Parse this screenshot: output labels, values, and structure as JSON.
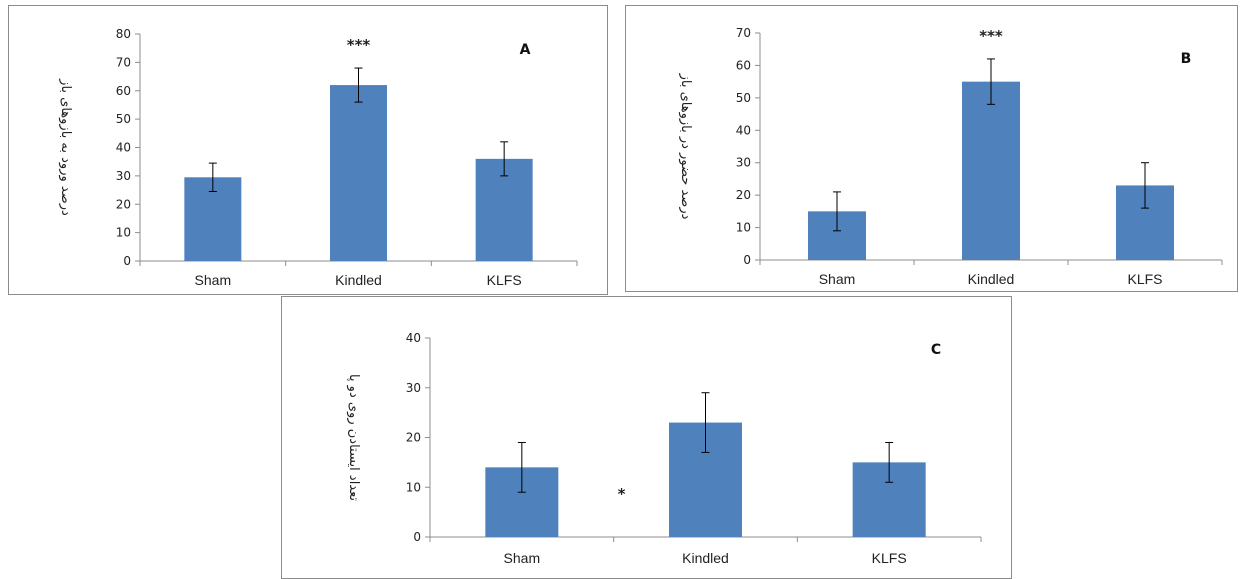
{
  "colors": {
    "bar": "#4f81bd",
    "axis": "#8c8c8c",
    "error": "#000000"
  },
  "chart_data": [
    {
      "id": "A",
      "type": "bar",
      "panel_label": "A",
      "categories": [
        "Sham",
        "Kindled",
        "KLFS"
      ],
      "values": [
        29.5,
        62,
        36
      ],
      "errors": [
        5,
        6,
        6
      ],
      "annotations": [
        "",
        "***",
        ""
      ],
      "ylabel": "درصد ورود به بازوهای باز",
      "ylim": [
        0,
        80
      ],
      "yticks": [
        0,
        10,
        20,
        30,
        40,
        50,
        60,
        70,
        80
      ],
      "grid": false,
      "legend": "none"
    },
    {
      "id": "B",
      "type": "bar",
      "panel_label": "B",
      "categories": [
        "Sham",
        "Kindled",
        "KLFS"
      ],
      "values": [
        15,
        55,
        23
      ],
      "errors": [
        6,
        7,
        7
      ],
      "annotations": [
        "",
        "***",
        ""
      ],
      "ylabel": "درصد حضور در بازوهای باز",
      "ylim": [
        0,
        70
      ],
      "yticks": [
        0,
        10,
        20,
        30,
        40,
        50,
        60,
        70
      ],
      "grid": false,
      "legend": "none"
    },
    {
      "id": "C",
      "type": "bar",
      "panel_label": "C",
      "categories": [
        "Sham",
        "Kindled",
        "KLFS"
      ],
      "values": [
        14,
        23,
        15
      ],
      "errors": [
        5,
        6,
        4
      ],
      "annotations": [
        "",
        "*",
        ""
      ],
      "ylabel": "تعداد ایستادن روی دو پا",
      "ylim": [
        0,
        40
      ],
      "yticks": [
        0,
        10,
        20,
        30,
        40
      ],
      "grid": false,
      "legend": "none"
    }
  ]
}
